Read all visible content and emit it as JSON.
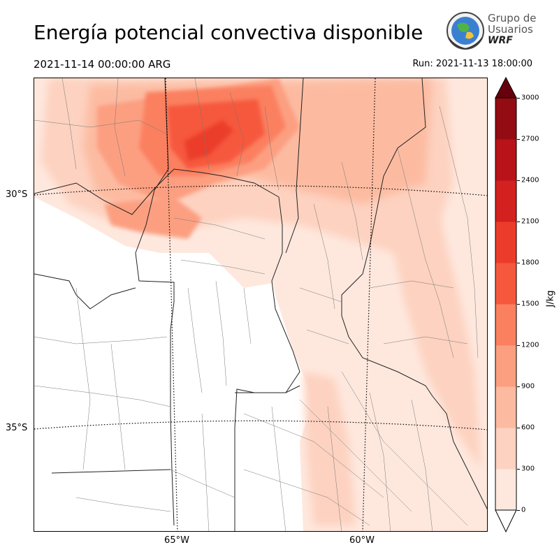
{
  "header": {
    "title": "Energía potencial convectiva disponible",
    "valid_time": "2021-11-14 00:00:00 ARG",
    "run_time": "Run: 2021-11-13 18:00:00"
  },
  "logo": {
    "line1": "Grupo de",
    "line2": "Usuarios",
    "line3": "WRF"
  },
  "map": {
    "lat_labels": [
      "30°S",
      "35°S"
    ],
    "lon_labels": [
      "65°W",
      "60°W"
    ]
  },
  "colorbar": {
    "unit": "J/kg",
    "ticks": [
      "3000",
      "2700",
      "2400",
      "2100",
      "1800",
      "1500",
      "1200",
      "900",
      "600",
      "300",
      "0"
    ],
    "colors": [
      "#fee8de",
      "#fdd2c0",
      "#fcbba1",
      "#fc9f81",
      "#fb8060",
      "#f6583e",
      "#eb3c2b",
      "#d2211f",
      "#b71319",
      "#930b13"
    ],
    "over_color": "#67000d"
  }
}
